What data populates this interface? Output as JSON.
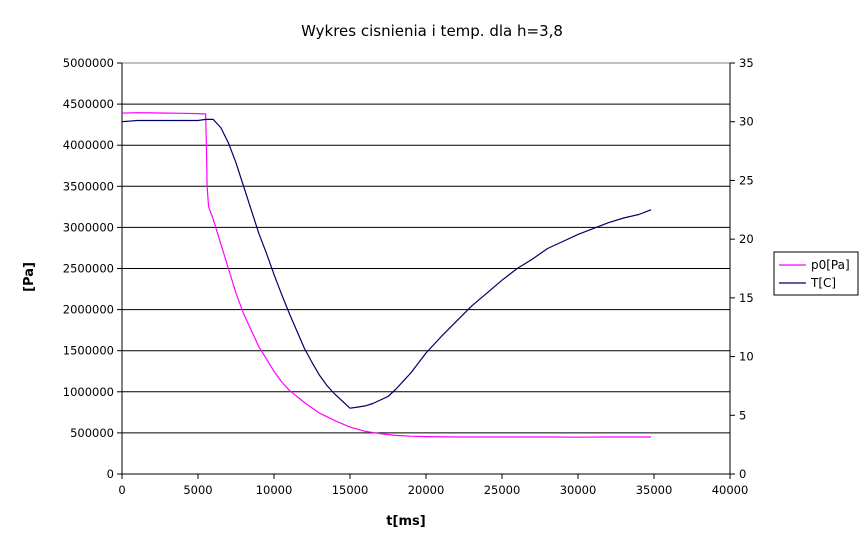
{
  "chart_data": {
    "type": "line",
    "title": "Wykres cisnienia i temp. dla h=3,8",
    "xlabel": "t[ms]",
    "ylabel": "[Pa]",
    "y2label": "",
    "xlim": [
      0,
      40000
    ],
    "ylim": [
      0,
      5000000
    ],
    "y2lim": [
      0,
      35
    ],
    "x_ticks": [
      "0",
      "5000",
      "10000",
      "15000",
      "20000",
      "25000",
      "30000",
      "35000",
      "40000"
    ],
    "y_ticks": [
      "0",
      "500000",
      "1000000",
      "1500000",
      "2000000",
      "2500000",
      "3000000",
      "3500000",
      "4000000",
      "4500000",
      "5000000"
    ],
    "y2_ticks": [
      "0",
      "5",
      "10",
      "15",
      "20",
      "25",
      "30",
      "35"
    ],
    "grid": "horizontal",
    "legend_position": "right",
    "series": [
      {
        "name": "p0[Pa]",
        "axis": "left",
        "color": "#ff00ff",
        "x": [
          0,
          1000,
          2000,
          3000,
          4000,
          5000,
          5500,
          5550,
          5600,
          5700,
          6000,
          6500,
          7000,
          7500,
          8000,
          8500,
          9000,
          9500,
          10000,
          10500,
          11000,
          12000,
          13000,
          14000,
          15000,
          16000,
          17000,
          18000,
          19000,
          20000,
          22000,
          25000,
          28000,
          30000,
          32000,
          34000,
          34800
        ],
        "y": [
          4390000,
          4395000,
          4393000,
          4390000,
          4388000,
          4385000,
          4380000,
          4000000,
          3500000,
          3250000,
          3100000,
          2800000,
          2500000,
          2200000,
          1950000,
          1750000,
          1550000,
          1400000,
          1250000,
          1120000,
          1020000,
          870000,
          740000,
          650000,
          570000,
          520000,
          490000,
          470000,
          460000,
          455000,
          450000,
          450000,
          450000,
          448000,
          450000,
          450000,
          450000
        ]
      },
      {
        "name": "T[C]",
        "axis": "right",
        "color": "#000066",
        "x": [
          0,
          1000,
          2000,
          3000,
          4000,
          5000,
          5500,
          6000,
          6500,
          7000,
          7500,
          8000,
          8500,
          9000,
          9500,
          10000,
          10500,
          11000,
          11500,
          12000,
          12500,
          13000,
          13500,
          14000,
          14500,
          15000,
          15500,
          16000,
          16500,
          17000,
          17500,
          18000,
          18500,
          19000,
          20000,
          21000,
          22000,
          23000,
          24000,
          25000,
          26000,
          27000,
          28000,
          29000,
          30000,
          31000,
          32000,
          33000,
          34000,
          34800
        ],
        "y": [
          30.0,
          30.1,
          30.1,
          30.1,
          30.1,
          30.1,
          30.2,
          30.2,
          29.5,
          28.2,
          26.5,
          24.5,
          22.5,
          20.5,
          18.8,
          17.0,
          15.3,
          13.7,
          12.2,
          10.7,
          9.5,
          8.4,
          7.5,
          6.8,
          6.2,
          5.6,
          5.7,
          5.8,
          6.0,
          6.3,
          6.6,
          7.2,
          7.9,
          8.6,
          10.3,
          11.7,
          13.0,
          14.3,
          15.4,
          16.5,
          17.5,
          18.3,
          19.2,
          19.8,
          20.4,
          20.9,
          21.4,
          21.8,
          22.1,
          22.5
        ]
      }
    ]
  }
}
